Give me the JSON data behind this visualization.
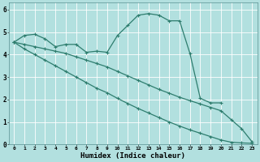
{
  "bg_color": "#b2e0df",
  "grid_color": "#d0eeee",
  "line_color": "#2e7d6e",
  "line_width": 0.9,
  "marker": "+",
  "marker_size": 3,
  "marker_lw": 0.8,
  "xlabel": "Humidex (Indice chaleur)",
  "xlim": [
    -0.5,
    23.5
  ],
  "ylim": [
    0,
    6.3
  ],
  "xticks": [
    0,
    1,
    2,
    3,
    4,
    5,
    6,
    7,
    8,
    9,
    10,
    11,
    12,
    13,
    14,
    15,
    16,
    17,
    18,
    19,
    20,
    21,
    22,
    23
  ],
  "yticks": [
    0,
    1,
    2,
    3,
    4,
    5,
    6
  ],
  "series1": {
    "x": [
      0,
      1,
      2,
      3,
      4,
      5,
      6,
      7,
      8,
      9,
      10,
      11,
      12,
      13,
      14,
      15,
      16,
      17,
      18,
      19,
      20
    ],
    "y": [
      4.55,
      4.85,
      4.9,
      4.7,
      4.35,
      4.45,
      4.45,
      4.1,
      4.15,
      4.1,
      4.85,
      5.3,
      5.75,
      5.82,
      5.75,
      5.5,
      5.5,
      4.05,
      2.05,
      1.85,
      1.85
    ]
  },
  "series2": {
    "x": [
      0,
      1,
      2,
      3,
      4,
      5,
      6,
      7,
      8,
      9,
      10,
      11,
      12,
      13,
      14,
      15,
      16,
      17,
      18,
      19,
      20,
      21,
      22,
      23
    ],
    "y": [
      4.55,
      4.45,
      4.35,
      4.25,
      4.15,
      4.05,
      3.9,
      3.75,
      3.6,
      3.45,
      3.25,
      3.05,
      2.85,
      2.65,
      2.45,
      2.28,
      2.1,
      1.95,
      1.8,
      1.65,
      1.5,
      1.1,
      0.7,
      0.12
    ]
  },
  "series3": {
    "x": [
      0,
      1,
      2,
      3,
      4,
      5,
      6,
      7,
      8,
      9,
      10,
      11,
      12,
      13,
      14,
      15,
      16,
      17,
      18,
      19,
      20,
      21,
      22,
      23
    ],
    "y": [
      4.55,
      4.25,
      4.0,
      3.75,
      3.5,
      3.25,
      3.0,
      2.75,
      2.5,
      2.3,
      2.05,
      1.82,
      1.6,
      1.4,
      1.2,
      1.0,
      0.82,
      0.65,
      0.5,
      0.35,
      0.2,
      0.1,
      0.07,
      0.05
    ]
  }
}
